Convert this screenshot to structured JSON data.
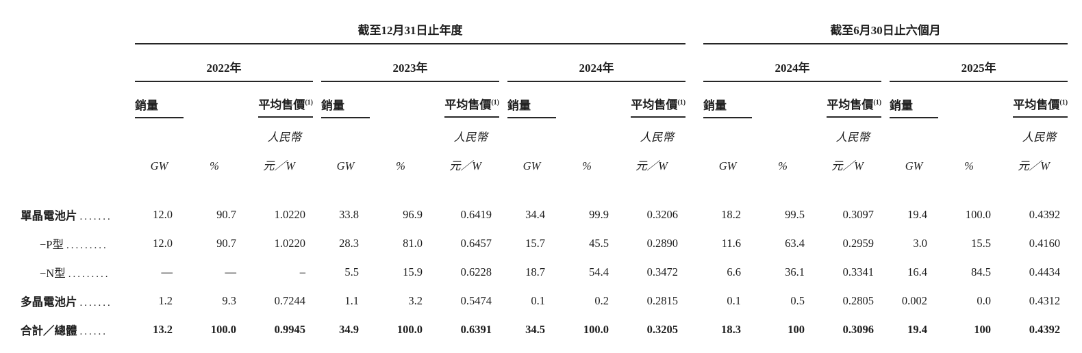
{
  "sections": [
    {
      "title": "截至12月31日止年度"
    },
    {
      "title": "截至6月30日止六個月"
    }
  ],
  "years": [
    "2022年",
    "2023年",
    "2024年",
    "2024年",
    "2025年"
  ],
  "group_headers": {
    "sales": "銷量",
    "asp": "平均售價",
    "asp_footnote": "(1)",
    "currency": "人民幣",
    "gw": "GW",
    "pct": "%",
    "price_unit": "元／W"
  },
  "rows": [
    {
      "label": "單晶電池片",
      "leader": ".......",
      "values": [
        "12.0",
        "90.7",
        "1.0220",
        "33.8",
        "96.9",
        "0.6419",
        "34.4",
        "99.9",
        "0.3206",
        "18.2",
        "99.5",
        "0.3097",
        "19.4",
        "100.0",
        "0.4392"
      ]
    },
    {
      "label": "−P型",
      "leader": ".........",
      "values": [
        "12.0",
        "90.7",
        "1.0220",
        "28.3",
        "81.0",
        "0.6457",
        "15.7",
        "45.5",
        "0.2890",
        "11.6",
        "63.4",
        "0.2959",
        "3.0",
        "15.5",
        "0.4160"
      ]
    },
    {
      "label": "−N型",
      "leader": ".........",
      "values": [
        "—",
        "—",
        "–",
        "5.5",
        "15.9",
        "0.6228",
        "18.7",
        "54.4",
        "0.3472",
        "6.6",
        "36.1",
        "0.3341",
        "16.4",
        "84.5",
        "0.4434"
      ]
    },
    {
      "label": "多晶電池片",
      "leader": ".......",
      "values": [
        "1.2",
        "9.3",
        "0.7244",
        "1.1",
        "3.2",
        "0.5474",
        "0.1",
        "0.2",
        "0.2815",
        "0.1",
        "0.5",
        "0.2805",
        "0.002",
        "0.0",
        "0.4312"
      ]
    },
    {
      "label": "合計／總體",
      "leader": "......",
      "values": [
        "13.2",
        "100.0",
        "0.9945",
        "34.9",
        "100.0",
        "0.6391",
        "34.5",
        "100.0",
        "0.3205",
        "18.3",
        "100",
        "0.3096",
        "19.4",
        "100",
        "0.4392"
      ]
    }
  ]
}
